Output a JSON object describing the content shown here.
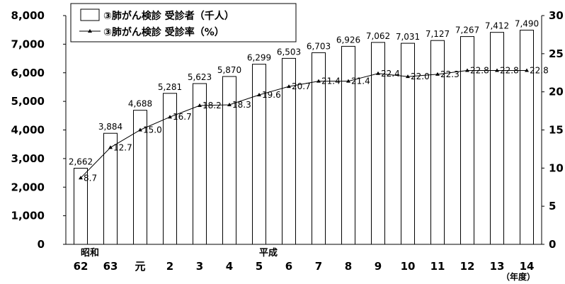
{
  "chart_data": {
    "type": "bar",
    "categories": [
      "62",
      "63",
      "元",
      "2",
      "3",
      "4",
      "5",
      "6",
      "7",
      "8",
      "9",
      "10",
      "11",
      "12",
      "13",
      "14"
    ],
    "era_labels": [
      {
        "category": "62",
        "text": "昭和"
      },
      {
        "category": "5",
        "text": "平成"
      }
    ],
    "x_unit": "（年度）",
    "series": [
      {
        "name": "③肺がん検診 受診者（千人）",
        "type": "bar",
        "axis": "left",
        "values": [
          2662,
          3884,
          4688,
          5281,
          5623,
          5870,
          6299,
          6503,
          6703,
          6926,
          7062,
          7031,
          7127,
          7267,
          7412,
          7490
        ],
        "labels": [
          "2,662",
          "3,884",
          "4,688",
          "5,281",
          "5,623",
          "5,870",
          "6,299",
          "6,503",
          "6,703",
          "6,926",
          "7,062",
          "7,031",
          "7,127",
          "7,267",
          "7,412",
          "7,490"
        ]
      },
      {
        "name": "③肺がん検診 受診率（%）",
        "type": "line",
        "axis": "right",
        "values": [
          8.7,
          12.7,
          15.0,
          16.7,
          18.2,
          18.3,
          19.6,
          20.7,
          21.4,
          21.4,
          22.4,
          22.0,
          22.3,
          22.8,
          22.8,
          22.8
        ],
        "labels": [
          "8.7",
          "12.7",
          "15.0",
          "16.7",
          "18.2",
          "18.3",
          "19.6",
          "20.7",
          "21.4",
          "21.4",
          "22.4",
          "22.0",
          "22.3",
          "22.8",
          "22.8",
          "22.8"
        ]
      }
    ],
    "y_left": {
      "min": 0,
      "max": 8000,
      "ticks": [
        "0",
        "1,000",
        "2,000",
        "3,000",
        "4,000",
        "5,000",
        "6,000",
        "7,000",
        "8,000"
      ]
    },
    "y_right": {
      "min": 0,
      "max": 30,
      "ticks": [
        "0",
        "5",
        "10",
        "15",
        "20",
        "25",
        "30"
      ]
    },
    "grid": false,
    "legend_position": "top-left"
  }
}
